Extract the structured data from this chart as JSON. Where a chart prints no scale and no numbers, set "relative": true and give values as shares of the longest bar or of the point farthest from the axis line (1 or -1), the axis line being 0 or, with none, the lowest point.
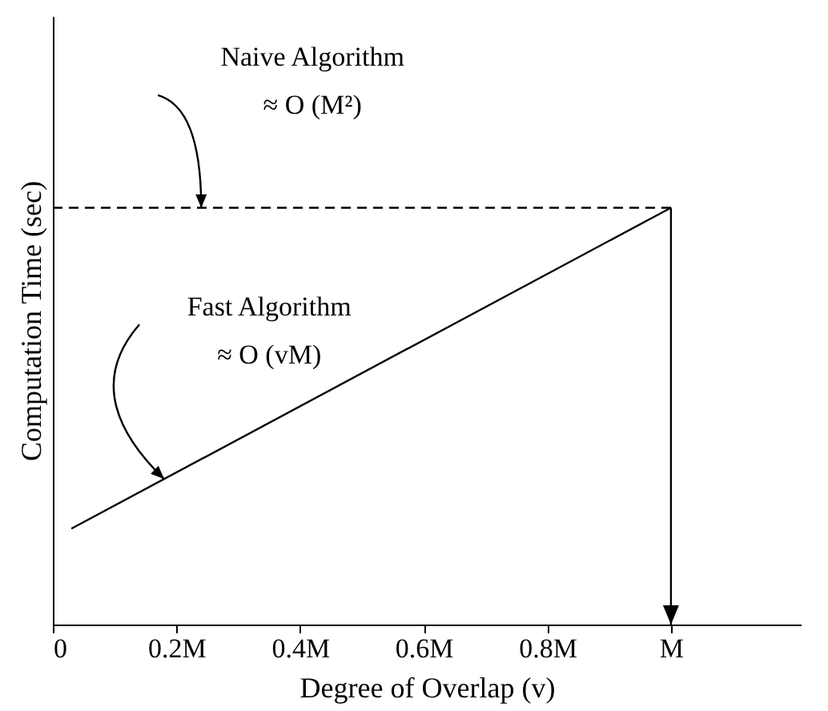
{
  "chart_data": {
    "type": "line",
    "relative": true,
    "xlabel": "Degree of Overlap (v)",
    "ylabel": "Computation Time (sec)",
    "xlim": [
      0,
      1.21
    ],
    "xticks": [
      0,
      {
        "value": 0.2,
        "label": "0.2M"
      },
      {
        "value": 0.4,
        "label": "0.4M"
      },
      {
        "value": 0.6,
        "label": "0.6M"
      },
      {
        "value": 0.8,
        "label": "0.8M"
      },
      {
        "value": 1,
        "label": "M"
      }
    ],
    "series": [
      {
        "color": "#000000",
        "line_style": "dashed",
        "x": [
          0,
          1
        ],
        "values": [
          1,
          1
        ]
      },
      {
        "color": "#000000",
        "line_style": "solid",
        "x": [
          0.03,
          1
        ],
        "values": [
          0.23,
          1
        ]
      }
    ],
    "ref_lines": [
      {
        "axis": "x",
        "value": 1,
        "color": "#000000",
        "line_style": "solid"
      }
    ],
    "annotations": [
      "Naive Algorithm\n≈ O (M²)",
      "Fast Algorithm\n≈ O (vM)"
    ],
    "grid": false,
    "marker": "none"
  }
}
